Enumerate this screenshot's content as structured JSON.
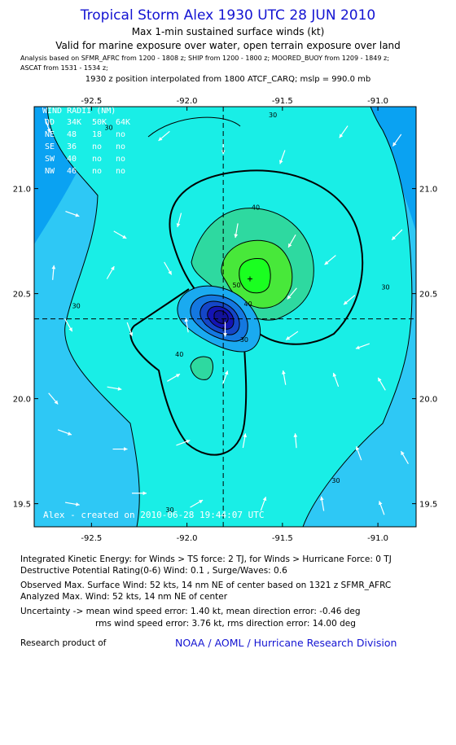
{
  "header": {
    "title": "Tropical Storm Alex 1930 UTC 28 JUN 2010",
    "subtitle1": "Max 1-min sustained surface winds (kt)",
    "subtitle2": "Valid for marine exposure over water, open terrain exposure over land",
    "analysis1": "Analysis based on  SFMR_AFRC from 1200 - 1808 z;  SHIP from 1200 - 1800 z;  MOORED_BUOY from 1209 - 1849 z;",
    "analysis2": "ASCAT from 1531 - 1534 z;",
    "position": "1930 z position interpolated from 1800 ATCF_CARQ; mslp = 990.0 mb"
  },
  "wind_radii": {
    "title": "WIND RADII (NM)",
    "rows": [
      {
        "cells": [
          "QD",
          "34K",
          "50K",
          "64K"
        ]
      },
      {
        "cells": [
          "NE",
          "48",
          "18",
          "no"
        ]
      },
      {
        "cells": [
          "SE",
          "36",
          "no",
          "no"
        ]
      },
      {
        "cells": [
          "SW",
          "40",
          "no",
          "no"
        ]
      },
      {
        "cells": [
          "NW",
          "46",
          "no",
          "no"
        ]
      }
    ]
  },
  "credit": "Alex - created on 2010-06-28 19:44:07 UTC",
  "footer": {
    "ike": "Integrated Kinetic Energy:  for Winds > TS force: 2 TJ,  for Winds > Hurricane Force: 0 TJ",
    "dpr": "Destructive Potential Rating(0-6)   Wind: 0.1 , Surge/Waves: 0.6",
    "obs": "Observed Max. Surface Wind: 52 kts, 14 nm NE of center based on 1321 z SFMR_AFRC",
    "analyzed": "Analyzed Max. Wind: 52 kts, 14 nm NE of center",
    "unc1": "Uncertainty -> mean wind speed error: 1.40 kt,   mean direction error:  -0.46 deg",
    "unc2": "rms wind speed error: 3.76 kt,   rms direction error: 14.00 deg",
    "product": "Research product of",
    "org": "NOAA / AOML / Hurricane Research Division"
  },
  "chart_data": {
    "type": "heatmap",
    "x_ticks": [
      "-92.5",
      "-92.0",
      "-91.5",
      "-91.0"
    ],
    "x_tick_values": [
      -92.5,
      -92.0,
      -91.5,
      -91.0
    ],
    "y_ticks": [
      "21.0",
      "20.5",
      "20.0",
      "19.5"
    ],
    "y_tick_values": [
      21.0,
      20.5,
      20.0,
      19.5
    ],
    "xlim": [
      -92.8,
      -90.8
    ],
    "ylim": [
      19.39,
      21.39
    ],
    "center": {
      "lon": -91.81,
      "lat": 20.38
    },
    "max_wind": {
      "lon": -91.67,
      "lat": 20.57
    },
    "contour_labels": [
      {
        "text": "30",
        "lon": -92.41,
        "lat": 21.28
      },
      {
        "text": "30",
        "lon": -91.55,
        "lat": 21.34
      },
      {
        "text": "30",
        "lon": -92.58,
        "lat": 20.43
      },
      {
        "text": "30",
        "lon": -90.96,
        "lat": 20.52
      },
      {
        "text": "30",
        "lon": -92.09,
        "lat": 19.46
      },
      {
        "text": "30",
        "lon": -91.22,
        "lat": 19.6
      },
      {
        "text": "30",
        "lon": -91.7,
        "lat": 20.27
      },
      {
        "text": "40",
        "lon": -91.64,
        "lat": 20.9
      },
      {
        "text": "40",
        "lon": -91.68,
        "lat": 20.44
      },
      {
        "text": "40",
        "lon": -92.04,
        "lat": 20.2
      },
      {
        "text": "50",
        "lon": -91.74,
        "lat": 20.53
      }
    ],
    "contour_levels": [
      30,
      40,
      50
    ],
    "wind_vectors": [
      {
        "lon": -92.73,
        "lat": 21.3,
        "dir": 160
      },
      {
        "lon": -92.12,
        "lat": 21.25,
        "dir": 230
      },
      {
        "lon": -91.81,
        "lat": 21.2,
        "dir": 180
      },
      {
        "lon": -91.5,
        "lat": 21.15,
        "dir": 200
      },
      {
        "lon": -91.18,
        "lat": 21.27,
        "dir": 215
      },
      {
        "lon": -90.9,
        "lat": 21.23,
        "dir": 215
      },
      {
        "lon": -92.6,
        "lat": 20.88,
        "dir": 110
      },
      {
        "lon": -92.35,
        "lat": 20.78,
        "dir": 120
      },
      {
        "lon": -92.04,
        "lat": 20.85,
        "dir": 195
      },
      {
        "lon": -91.74,
        "lat": 20.8,
        "dir": 190
      },
      {
        "lon": -91.45,
        "lat": 20.75,
        "dir": 210
      },
      {
        "lon": -91.25,
        "lat": 20.66,
        "dir": 230
      },
      {
        "lon": -90.9,
        "lat": 20.78,
        "dir": 225
      },
      {
        "lon": -92.7,
        "lat": 20.6,
        "dir": 5
      },
      {
        "lon": -92.4,
        "lat": 20.6,
        "dir": 30
      },
      {
        "lon": -92.1,
        "lat": 20.62,
        "dir": 150
      },
      {
        "lon": -91.45,
        "lat": 20.5,
        "dir": 220
      },
      {
        "lon": -91.15,
        "lat": 20.47,
        "dir": 230
      },
      {
        "lon": -92.62,
        "lat": 20.35,
        "dir": 150
      },
      {
        "lon": -92.3,
        "lat": 20.33,
        "dir": 160
      },
      {
        "lon": -92.0,
        "lat": 20.35,
        "dir": 350
      },
      {
        "lon": -91.8,
        "lat": 20.33,
        "dir": 180
      },
      {
        "lon": -91.45,
        "lat": 20.3,
        "dir": 235
      },
      {
        "lon": -91.08,
        "lat": 20.25,
        "dir": 250
      },
      {
        "lon": -92.7,
        "lat": 20.0,
        "dir": 140
      },
      {
        "lon": -92.38,
        "lat": 20.05,
        "dir": 100
      },
      {
        "lon": -92.07,
        "lat": 20.1,
        "dir": 60
      },
      {
        "lon": -91.8,
        "lat": 20.1,
        "dir": 20
      },
      {
        "lon": -91.49,
        "lat": 20.1,
        "dir": 350
      },
      {
        "lon": -91.22,
        "lat": 20.09,
        "dir": 340
      },
      {
        "lon": -90.98,
        "lat": 20.07,
        "dir": 330
      },
      {
        "lon": -92.64,
        "lat": 19.84,
        "dir": 110
      },
      {
        "lon": -92.35,
        "lat": 19.76,
        "dir": 90
      },
      {
        "lon": -92.02,
        "lat": 19.79,
        "dir": 70
      },
      {
        "lon": -91.7,
        "lat": 19.8,
        "dir": 10
      },
      {
        "lon": -91.43,
        "lat": 19.8,
        "dir": 355
      },
      {
        "lon": -91.1,
        "lat": 19.74,
        "dir": 340
      },
      {
        "lon": -90.86,
        "lat": 19.72,
        "dir": 330
      },
      {
        "lon": -92.6,
        "lat": 19.5,
        "dir": 100
      },
      {
        "lon": -92.25,
        "lat": 19.55,
        "dir": 90
      },
      {
        "lon": -91.95,
        "lat": 19.5,
        "dir": 60
      },
      {
        "lon": -91.6,
        "lat": 19.5,
        "dir": 20
      },
      {
        "lon": -91.29,
        "lat": 19.5,
        "dir": 350
      },
      {
        "lon": -90.98,
        "lat": 19.48,
        "dir": 340
      }
    ],
    "colors": {
      "bg_lt20": "#0aa2f2",
      "c20_30": "#2ec8f5",
      "c30_40": "#19eee6",
      "c40_50": "#2ed9a0",
      "c50_60": "#48e83a",
      "c60_70": "#1aff20",
      "low_1": "#1aaaf0",
      "low_2": "#1478e0",
      "low_3": "#1446c8",
      "low_4": "#1414b4",
      "low_5": "#12129a"
    }
  }
}
